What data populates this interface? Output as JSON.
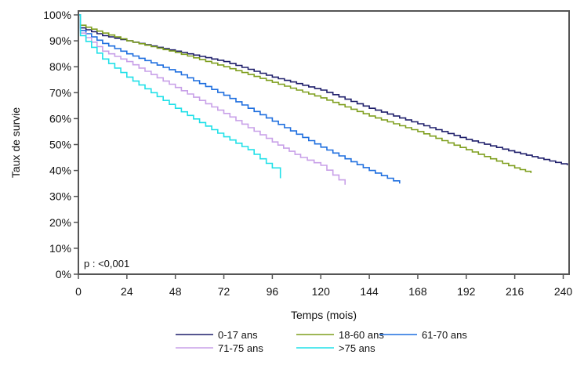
{
  "chart_data": {
    "type": "line",
    "title": "",
    "xlabel": "Temps (mois)",
    "ylabel": "Taux de survie",
    "xlim": [
      0,
      242
    ],
    "ylim": [
      0,
      100
    ],
    "xticks": [
      0,
      24,
      48,
      72,
      96,
      120,
      144,
      168,
      192,
      216,
      240
    ],
    "yticks": [
      0,
      10,
      20,
      30,
      40,
      50,
      60,
      70,
      80,
      90,
      100
    ],
    "ytick_labels": [
      "0%",
      "10%",
      "20%",
      "30%",
      "40%",
      "50%",
      "60%",
      "70%",
      "80%",
      "90%",
      "100%"
    ],
    "grid": false,
    "legend_position": "bottom",
    "annotation": "p : <0,001",
    "series": [
      {
        "name": "0-17 ans",
        "color": "#1f1f6b",
        "x": [
          0,
          1,
          12,
          24,
          48,
          72,
          96,
          120,
          144,
          168,
          192,
          216,
          242
        ],
        "y": [
          100,
          95,
          92,
          90,
          86,
          82,
          76,
          71,
          64,
          58,
          52,
          47,
          42
        ]
      },
      {
        "name": "18-60 ans",
        "color": "#7f9f1f",
        "x": [
          0,
          1,
          12,
          24,
          48,
          72,
          96,
          120,
          144,
          168,
          192,
          216,
          224
        ],
        "y": [
          100,
          96,
          93,
          90,
          85.5,
          80,
          74,
          68,
          61,
          55,
          48,
          41,
          39
        ]
      },
      {
        "name": "61-70 ans",
        "color": "#1f6fdf",
        "x": [
          0,
          1,
          12,
          24,
          48,
          72,
          96,
          120,
          144,
          156,
          159
        ],
        "y": [
          100,
          94,
          89,
          85,
          78,
          69,
          59,
          49,
          40,
          36,
          35
        ]
      },
      {
        "name": "71-75 ans",
        "color": "#c8a0e8",
        "x": [
          0,
          1,
          12,
          24,
          48,
          72,
          96,
          110,
          120,
          132
        ],
        "y": [
          100,
          93,
          86,
          82,
          72,
          62,
          51,
          45,
          42,
          34.5
        ]
      },
      {
        "name": ">75 ans",
        "color": "#20e0e8",
        "x": [
          0,
          1,
          12,
          24,
          48,
          72,
          84,
          96,
          100
        ],
        "y": [
          100,
          92,
          83,
          76,
          64,
          53,
          48,
          41,
          37
        ]
      }
    ]
  }
}
